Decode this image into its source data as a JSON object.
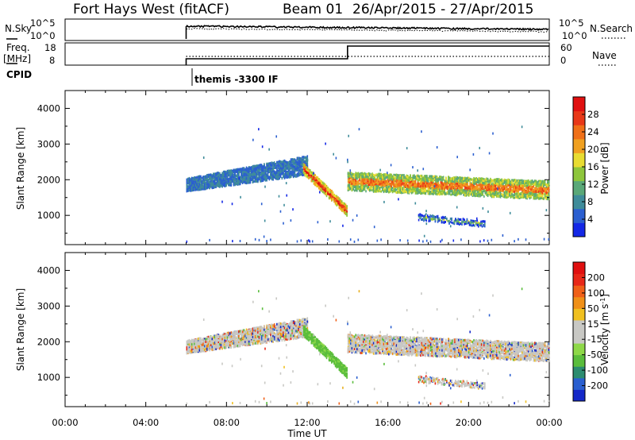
{
  "header": {
    "title": "Fort Hays West (fitACF)",
    "beam": "Beam 01",
    "date_range": "26/Apr/2015 - 27/Apr/2015"
  },
  "top_panels": {
    "nsky": {
      "label": "N.Sky",
      "ticks": [
        "10^5",
        "10^0"
      ],
      "right_ticks": [
        "10^5",
        "10^0"
      ],
      "right_label": "N.Search"
    },
    "freq": {
      "label_line1": "Freq.",
      "label_line2": "[MHz]",
      "ticks": [
        "18",
        "8"
      ],
      "right_ticks": [
        "60",
        "0"
      ],
      "right_label": "Nave"
    },
    "cpid": {
      "label": "CPID",
      "program": "themis -3300 IF"
    }
  },
  "x_axis": {
    "label": "Time UT",
    "ticks": [
      "00:00",
      "04:00",
      "08:00",
      "12:00",
      "16:00",
      "20:00",
      "00:00"
    ]
  },
  "chart_data": [
    {
      "type": "heatmap",
      "panel": "power",
      "ylabel": "Slant Range [km]",
      "x_range_hours": [
        0,
        24
      ],
      "ylim": [
        180,
        4500
      ],
      "y_ticks": [
        1000,
        2000,
        3000,
        4000
      ],
      "colorbar": {
        "label": "Power [dB]",
        "ticks": [
          "4",
          "8",
          "12",
          "16",
          "20",
          "24",
          "28"
        ],
        "colors": [
          "#1428e6",
          "#2b5fd0",
          "#3f8c9a",
          "#5aa878",
          "#8ec63c",
          "#e8dc32",
          "#f0a020",
          "#f07018",
          "#e83818",
          "#e01010"
        ]
      },
      "features": [
        {
          "name": "early band",
          "t_start": 6.0,
          "t_end": 12.0,
          "range_start_km": 1850,
          "range_end_km": 2400,
          "power_db": 6
        },
        {
          "name": "descending feature",
          "t_start": 11.8,
          "t_end": 14.0,
          "range_start_km": 2300,
          "range_end_km": 1100,
          "power_db": 20
        },
        {
          "name": "late band",
          "t_start": 14.0,
          "t_end": 24.0,
          "range_start_km": 1950,
          "range_end_km": 1700,
          "power_db": 16
        },
        {
          "name": "lower patch",
          "t_start": 17.5,
          "t_end": 20.8,
          "range_start_km": 950,
          "range_end_km": 750,
          "power_db": 6
        }
      ]
    },
    {
      "type": "heatmap",
      "panel": "velocity",
      "ylabel": "Slant Range [km]",
      "x_range_hours": [
        0,
        24
      ],
      "ylim": [
        180,
        4500
      ],
      "y_ticks": [
        1000,
        2000,
        3000,
        4000
      ],
      "colorbar": {
        "label": "Velocity [m s^-1]",
        "ticks": [
          "200",
          "100",
          "50",
          "15",
          "-15",
          "-50",
          "-100",
          "-200"
        ],
        "colors": [
          "#1428c8",
          "#2a5fd0",
          "#2c8c70",
          "#5abd3c",
          "#8ed848",
          "#c8c8c4",
          "#c8c8c4",
          "#f0c020",
          "#f09018",
          "#f06018",
          "#e82818",
          "#e01010"
        ]
      }
    }
  ]
}
